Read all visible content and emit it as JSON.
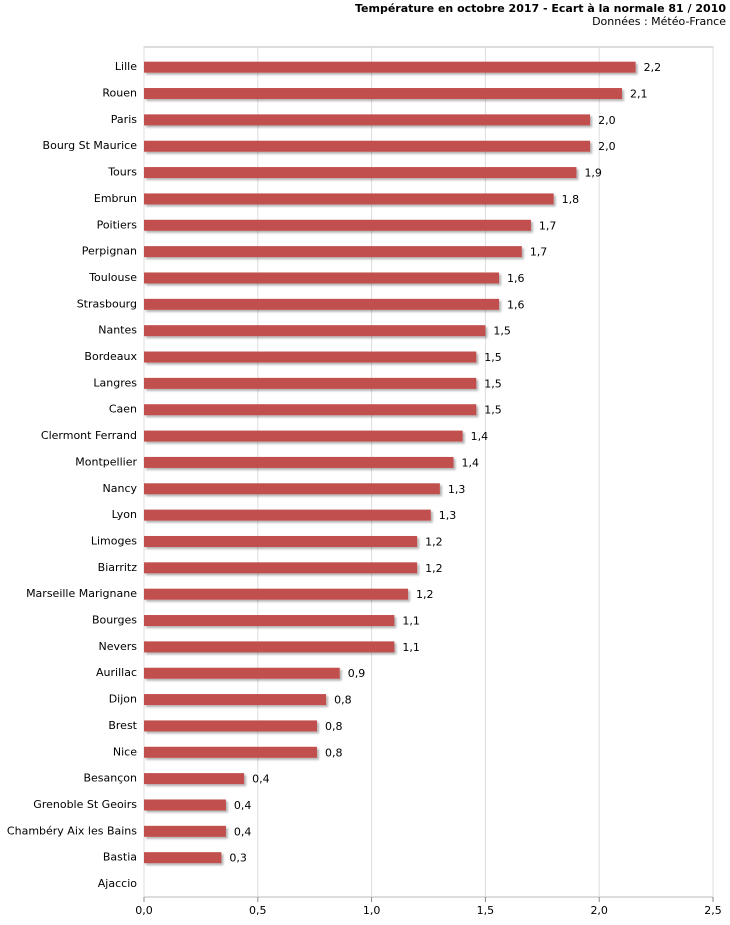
{
  "chart_data": {
    "type": "bar",
    "orientation": "horizontal",
    "title": "Température en octobre 2017 - Ecart à la normale 81 / 2010",
    "subtitle": "Données : Météo-France",
    "categories": [
      "Lille",
      "Rouen",
      "Paris",
      "Bourg St Maurice",
      "Tours",
      "Embrun",
      "Poitiers",
      "Perpignan",
      "Toulouse",
      "Strasbourg",
      "Nantes",
      "Bordeaux",
      "Langres",
      "Caen",
      "Clermont Ferrand",
      "Montpellier",
      "Nancy",
      "Lyon",
      "Limoges",
      "Biarritz",
      "Marseille Marignane",
      "Bourges",
      "Nevers",
      "Aurillac",
      "Dijon",
      "Brest",
      "Nice",
      "Besançon",
      "Grenoble St Geoirs",
      "Chambéry Aix les Bains",
      "Bastia",
      "Ajaccio"
    ],
    "values": [
      2.16,
      2.1,
      1.96,
      1.96,
      1.9,
      1.8,
      1.7,
      1.66,
      1.56,
      1.56,
      1.5,
      1.46,
      1.46,
      1.46,
      1.4,
      1.36,
      1.3,
      1.26,
      1.2,
      1.2,
      1.16,
      1.1,
      1.1,
      0.86,
      0.8,
      0.76,
      0.76,
      0.44,
      0.36,
      0.36,
      0.34,
      null
    ],
    "value_labels": [
      "2,2",
      "2,1",
      "2,0",
      "2,0",
      "1,9",
      "1,8",
      "1,7",
      "1,7",
      "1,6",
      "1,6",
      "1,5",
      "1,5",
      "1,5",
      "1,5",
      "1,4",
      "1,4",
      "1,3",
      "1,3",
      "1,2",
      "1,2",
      "1,2",
      "1,1",
      "1,1",
      "0,9",
      "0,8",
      "0,8",
      "0,8",
      "0,4",
      "0,4",
      "0,4",
      "0,3",
      null
    ],
    "color": "#c0504d",
    "xlim": [
      0,
      2.5
    ],
    "xticks": [
      {
        "value": 0,
        "label": "0,0"
      },
      {
        "value": 0.5,
        "label": "0,5"
      },
      {
        "value": 1,
        "label": "1,0"
      },
      {
        "value": 1.5,
        "label": "1,5"
      },
      {
        "value": 2,
        "label": "2,0"
      },
      {
        "value": 2.5,
        "label": "2,5"
      }
    ],
    "grid": true
  }
}
